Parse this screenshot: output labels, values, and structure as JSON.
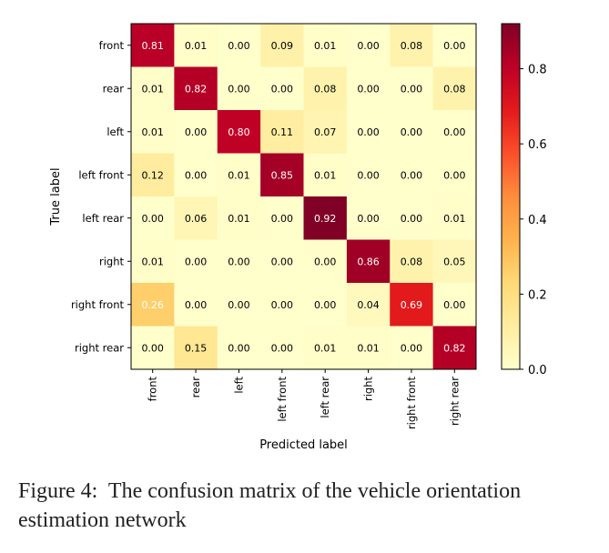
{
  "chart_data": {
    "type": "heatmap",
    "title": "",
    "xlabel": "Predicted label",
    "ylabel": "True label",
    "rows": [
      "front",
      "rear",
      "left",
      "left front",
      "left rear",
      "right",
      "right front",
      "right rear"
    ],
    "cols": [
      "front",
      "rear",
      "left",
      "left front",
      "left rear",
      "right",
      "right front",
      "right rear"
    ],
    "values": [
      [
        "0.81",
        "0.01",
        "0.00",
        "0.09",
        "0.01",
        "0.00",
        "0.08",
        "0.00"
      ],
      [
        "0.01",
        "0.82",
        "0.00",
        "0.00",
        "0.08",
        "0.00",
        "0.00",
        "0.08"
      ],
      [
        "0.01",
        "0.00",
        "0.80",
        "0.11",
        "0.07",
        "0.00",
        "0.00",
        "0.00"
      ],
      [
        "0.12",
        "0.00",
        "0.01",
        "0.85",
        "0.01",
        "0.00",
        "0.00",
        "0.00"
      ],
      [
        "0.00",
        "0.06",
        "0.01",
        "0.00",
        "0.92",
        "0.00",
        "0.00",
        "0.01"
      ],
      [
        "0.01",
        "0.00",
        "0.00",
        "0.00",
        "0.00",
        "0.86",
        "0.08",
        "0.05"
      ],
      [
        "0.26",
        "0.00",
        "0.00",
        "0.00",
        "0.00",
        "0.04",
        "0.69",
        "0.00"
      ],
      [
        "0.00",
        "0.15",
        "0.00",
        "0.00",
        "0.01",
        "0.01",
        "0.00",
        "0.82"
      ]
    ],
    "colorbar": {
      "colormap": "YlOrRd",
      "range": [
        0.0,
        0.92
      ],
      "ticks": [
        "0.0",
        "0.2",
        "0.4",
        "0.6",
        "0.8"
      ]
    }
  },
  "caption": {
    "prefix": "Figure 4:",
    "text": "The confusion matrix of the vehicle orientation estimation network"
  }
}
